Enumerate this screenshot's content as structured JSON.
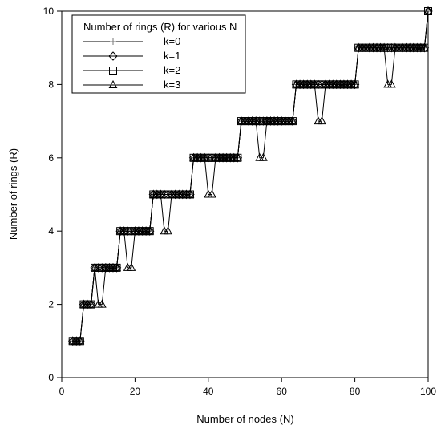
{
  "chart_data": {
    "type": "line",
    "title": "",
    "xlabel": "Number of nodes (N)",
    "ylabel": "Number of rings (R)",
    "xlim": [
      0,
      100
    ],
    "ylim": [
      0,
      10
    ],
    "xticks": [
      0,
      20,
      40,
      60,
      80,
      100
    ],
    "yticks": [
      0,
      2,
      4,
      6,
      8,
      10
    ],
    "grid": false,
    "legend": {
      "title": "Number of rings (R) for various N",
      "placement": "top-left"
    },
    "x": [
      3,
      4,
      5,
      6,
      7,
      8,
      9,
      10,
      11,
      12,
      13,
      14,
      15,
      16,
      17,
      18,
      19,
      20,
      21,
      22,
      23,
      24,
      25,
      26,
      27,
      28,
      29,
      30,
      31,
      32,
      33,
      34,
      35,
      36,
      37,
      38,
      39,
      40,
      41,
      42,
      43,
      44,
      45,
      46,
      47,
      48,
      49,
      50,
      51,
      52,
      53,
      54,
      55,
      56,
      57,
      58,
      59,
      60,
      61,
      62,
      63,
      64,
      65,
      66,
      67,
      68,
      69,
      70,
      71,
      72,
      73,
      74,
      75,
      76,
      77,
      78,
      79,
      80,
      81,
      82,
      83,
      84,
      85,
      86,
      87,
      88,
      89,
      90,
      91,
      92,
      93,
      94,
      95,
      96,
      97,
      98,
      99,
      100
    ],
    "series": [
      {
        "name": "k=0",
        "marker": "plus",
        "values": [
          1,
          1,
          1,
          2,
          2,
          2,
          3,
          3,
          3,
          3,
          3,
          3,
          3,
          4,
          4,
          4,
          4,
          4,
          4,
          4,
          4,
          4,
          5,
          5,
          5,
          5,
          5,
          5,
          5,
          5,
          5,
          5,
          5,
          6,
          6,
          6,
          6,
          6,
          6,
          6,
          6,
          6,
          6,
          6,
          6,
          6,
          7,
          7,
          7,
          7,
          7,
          7,
          7,
          7,
          7,
          7,
          7,
          7,
          7,
          7,
          7,
          8,
          8,
          8,
          8,
          8,
          8,
          8,
          8,
          8,
          8,
          8,
          8,
          8,
          8,
          8,
          8,
          8,
          9,
          9,
          9,
          9,
          9,
          9,
          9,
          9,
          9,
          9,
          9,
          9,
          9,
          9,
          9,
          9,
          9,
          9,
          9,
          10
        ]
      },
      {
        "name": "k=1",
        "marker": "diamond",
        "values": [
          1,
          1,
          1,
          2,
          2,
          2,
          3,
          3,
          3,
          3,
          3,
          3,
          3,
          4,
          4,
          4,
          4,
          4,
          4,
          4,
          4,
          4,
          5,
          5,
          5,
          5,
          5,
          5,
          5,
          5,
          5,
          5,
          5,
          6,
          6,
          6,
          6,
          6,
          6,
          6,
          6,
          6,
          6,
          6,
          6,
          6,
          7,
          7,
          7,
          7,
          7,
          7,
          7,
          7,
          7,
          7,
          7,
          7,
          7,
          7,
          7,
          8,
          8,
          8,
          8,
          8,
          8,
          8,
          8,
          8,
          8,
          8,
          8,
          8,
          8,
          8,
          8,
          8,
          9,
          9,
          9,
          9,
          9,
          9,
          9,
          9,
          9,
          9,
          9,
          9,
          9,
          9,
          9,
          9,
          9,
          9,
          9,
          10
        ]
      },
      {
        "name": "k=2",
        "marker": "square",
        "values": [
          1,
          1,
          1,
          2,
          2,
          2,
          3,
          3,
          3,
          3,
          3,
          3,
          3,
          4,
          4,
          4,
          4,
          4,
          4,
          4,
          4,
          4,
          5,
          5,
          5,
          5,
          5,
          5,
          5,
          5,
          5,
          5,
          5,
          6,
          6,
          6,
          6,
          6,
          6,
          6,
          6,
          6,
          6,
          6,
          6,
          6,
          7,
          7,
          7,
          7,
          7,
          7,
          7,
          7,
          7,
          7,
          7,
          7,
          7,
          7,
          7,
          8,
          8,
          8,
          8,
          8,
          8,
          8,
          8,
          8,
          8,
          8,
          8,
          8,
          8,
          8,
          8,
          8,
          9,
          9,
          9,
          9,
          9,
          9,
          9,
          9,
          9,
          9,
          9,
          9,
          9,
          9,
          9,
          9,
          9,
          9,
          9,
          10
        ]
      },
      {
        "name": "k=3",
        "marker": "triangle",
        "values": [
          1,
          1,
          1,
          2,
          2,
          2,
          3,
          2,
          2,
          3,
          3,
          3,
          3,
          4,
          4,
          3,
          3,
          4,
          4,
          4,
          4,
          4,
          5,
          5,
          5,
          4,
          4,
          5,
          5,
          5,
          5,
          5,
          5,
          6,
          6,
          6,
          6,
          5,
          5,
          6,
          6,
          6,
          6,
          6,
          6,
          6,
          7,
          7,
          7,
          7,
          7,
          6,
          6,
          7,
          7,
          7,
          7,
          7,
          7,
          7,
          7,
          8,
          8,
          8,
          8,
          8,
          8,
          7,
          7,
          8,
          8,
          8,
          8,
          8,
          8,
          8,
          8,
          8,
          9,
          9,
          9,
          9,
          9,
          9,
          9,
          9,
          8,
          8,
          9,
          9,
          9,
          9,
          9,
          9,
          9,
          9,
          9,
          10
        ]
      }
    ]
  }
}
